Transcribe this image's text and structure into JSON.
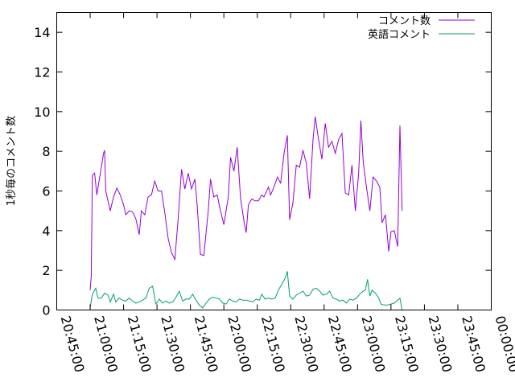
{
  "chart_data": {
    "type": "line",
    "ylabel": "1秒毎のコメント数",
    "xlabel": "",
    "ylim": [
      0,
      15
    ],
    "yticks": [
      0,
      2,
      4,
      6,
      8,
      10,
      12,
      14
    ],
    "xlim": [
      "20:45:00",
      "00:00:00"
    ],
    "xticks": [
      "20:45:00",
      "21:00:00",
      "21:15:00",
      "21:30:00",
      "21:45:00",
      "22:00:00",
      "22:15:00",
      "22:30:00",
      "22:45:00",
      "23:00:00",
      "23:15:00",
      "23:30:00",
      "23:45:00",
      "00:00:00"
    ],
    "grid": false,
    "legend": "top-right",
    "series": [
      {
        "name": "コメント数",
        "color": "#9400d3",
        "points": [
          [
            "21:00:00",
            1.0
          ],
          [
            "21:00:30",
            1.7
          ],
          [
            "21:01:00",
            6.8
          ],
          [
            "21:02:00",
            6.9
          ],
          [
            "21:03:00",
            5.8
          ],
          [
            "21:04:00",
            6.5
          ],
          [
            "21:06:00",
            7.9
          ],
          [
            "21:06:30",
            8.05
          ],
          [
            "21:07:00",
            6.0
          ],
          [
            "21:08:00",
            5.5
          ],
          [
            "21:09:00",
            5.0
          ],
          [
            "21:10:30",
            5.7
          ],
          [
            "21:12:00",
            6.15
          ],
          [
            "21:13:30",
            5.8
          ],
          [
            "21:15:00",
            5.3
          ],
          [
            "21:16:00",
            4.8
          ],
          [
            "21:17:30",
            5.0
          ],
          [
            "21:19:00",
            4.95
          ],
          [
            "21:20:30",
            4.6
          ],
          [
            "21:22:00",
            3.8
          ],
          [
            "21:23:00",
            5.0
          ],
          [
            "21:24:30",
            4.8
          ],
          [
            "21:26:00",
            5.7
          ],
          [
            "21:27:30",
            5.8
          ],
          [
            "21:29:00",
            6.5
          ],
          [
            "21:30:30",
            6.0
          ],
          [
            "21:32:00",
            6.0
          ],
          [
            "21:33:30",
            4.9
          ],
          [
            "21:35:00",
            3.6
          ],
          [
            "21:36:30",
            2.9
          ],
          [
            "21:38:00",
            2.55
          ],
          [
            "21:39:30",
            4.6
          ],
          [
            "21:41:00",
            7.1
          ],
          [
            "21:42:30",
            6.1
          ],
          [
            "21:44:00",
            6.9
          ],
          [
            "21:45:30",
            6.1
          ],
          [
            "21:47:00",
            6.6
          ],
          [
            "21:48:00",
            5.3
          ],
          [
            "21:49:30",
            2.8
          ],
          [
            "21:51:00",
            2.75
          ],
          [
            "21:53:00",
            5.0
          ],
          [
            "21:54:00",
            6.6
          ],
          [
            "21:55:30",
            5.7
          ],
          [
            "21:57:00",
            5.8
          ],
          [
            "21:58:30",
            5.0
          ],
          [
            "22:00:00",
            4.3
          ],
          [
            "22:02:00",
            5.7
          ],
          [
            "22:03:00",
            7.7
          ],
          [
            "22:04:30",
            7.0
          ],
          [
            "22:06:00",
            8.2
          ],
          [
            "22:07:30",
            5.6
          ],
          [
            "22:09:00",
            4.5
          ],
          [
            "22:10:00",
            3.9
          ],
          [
            "22:11:00",
            5.3
          ],
          [
            "22:12:30",
            5.6
          ],
          [
            "22:14:00",
            5.5
          ],
          [
            "22:15:30",
            5.5
          ],
          [
            "22:17:00",
            5.8
          ],
          [
            "22:18:00",
            5.7
          ],
          [
            "22:20:00",
            6.2
          ],
          [
            "22:21:00",
            5.8
          ],
          [
            "22:22:30",
            6.2
          ],
          [
            "22:24:00",
            6.7
          ],
          [
            "22:25:30",
            6.4
          ],
          [
            "22:27:00",
            7.9
          ],
          [
            "22:28:30",
            8.8
          ],
          [
            "22:29:30",
            4.55
          ],
          [
            "22:31:00",
            5.4
          ],
          [
            "22:32:30",
            7.3
          ],
          [
            "22:34:00",
            7.2
          ],
          [
            "22:35:30",
            8.05
          ],
          [
            "22:37:00",
            7.4
          ],
          [
            "22:38:30",
            5.6
          ],
          [
            "22:40:00",
            8.6
          ],
          [
            "22:41:00",
            9.75
          ],
          [
            "22:42:30",
            8.6
          ],
          [
            "22:44:00",
            7.6
          ],
          [
            "22:45:30",
            9.4
          ],
          [
            "22:47:00",
            8.2
          ],
          [
            "22:48:30",
            8.5
          ],
          [
            "22:50:00",
            7.9
          ],
          [
            "22:51:30",
            8.6
          ],
          [
            "22:53:00",
            8.9
          ],
          [
            "22:54:30",
            5.9
          ],
          [
            "22:56:00",
            5.8
          ],
          [
            "22:57:30",
            7.3
          ],
          [
            "22:59:00",
            5.0
          ],
          [
            "23:00:30",
            6.9
          ],
          [
            "23:01:30",
            9.55
          ],
          [
            "23:02:30",
            7.5
          ],
          [
            "23:04:00",
            6.2
          ],
          [
            "23:05:30",
            5.0
          ],
          [
            "23:07:00",
            6.7
          ],
          [
            "23:08:30",
            6.5
          ],
          [
            "23:10:00",
            6.2
          ],
          [
            "23:11:00",
            4.4
          ],
          [
            "23:12:30",
            4.8
          ],
          [
            "23:14:00",
            2.95
          ],
          [
            "23:15:00",
            3.95
          ],
          [
            "23:16:30",
            4.0
          ],
          [
            "23:18:00",
            3.2
          ],
          [
            "23:19:00",
            9.3
          ],
          [
            "23:20:00",
            5.0
          ]
        ]
      },
      {
        "name": "英語コメント",
        "color": "#009e73",
        "points": [
          [
            "21:00:00",
            0.1
          ],
          [
            "21:01:00",
            0.8
          ],
          [
            "21:02:30",
            1.1
          ],
          [
            "21:03:30",
            0.6
          ],
          [
            "21:05:00",
            0.6
          ],
          [
            "21:06:30",
            0.85
          ],
          [
            "21:08:00",
            0.75
          ],
          [
            "21:09:00",
            0.4
          ],
          [
            "21:10:30",
            0.8
          ],
          [
            "21:11:30",
            0.4
          ],
          [
            "21:13:00",
            0.6
          ],
          [
            "21:14:30",
            0.5
          ],
          [
            "21:16:00",
            0.45
          ],
          [
            "21:17:30",
            0.6
          ],
          [
            "21:19:00",
            0.45
          ],
          [
            "21:20:30",
            0.35
          ],
          [
            "21:22:00",
            0.4
          ],
          [
            "21:23:30",
            0.5
          ],
          [
            "21:25:00",
            0.6
          ],
          [
            "21:26:30",
            1.1
          ],
          [
            "21:28:00",
            1.2
          ],
          [
            "21:29:30",
            0.3
          ],
          [
            "21:31:00",
            0.55
          ],
          [
            "21:32:30",
            0.35
          ],
          [
            "21:34:00",
            0.45
          ],
          [
            "21:35:30",
            0.35
          ],
          [
            "21:37:00",
            0.4
          ],
          [
            "21:38:30",
            0.65
          ],
          [
            "21:40:00",
            0.95
          ],
          [
            "21:41:30",
            0.45
          ],
          [
            "21:43:00",
            0.55
          ],
          [
            "21:44:30",
            0.55
          ],
          [
            "21:46:00",
            0.8
          ],
          [
            "21:47:30",
            0.5
          ],
          [
            "21:49:00",
            0.25
          ],
          [
            "21:50:30",
            0.1
          ],
          [
            "21:52:00",
            0.35
          ],
          [
            "21:53:30",
            0.55
          ],
          [
            "21:55:00",
            0.65
          ],
          [
            "21:56:30",
            0.6
          ],
          [
            "21:58:00",
            0.55
          ],
          [
            "21:59:30",
            0.35
          ],
          [
            "22:01:00",
            0.3
          ],
          [
            "22:02:30",
            0.55
          ],
          [
            "22:04:00",
            0.45
          ],
          [
            "22:05:30",
            0.4
          ],
          [
            "22:07:00",
            0.55
          ],
          [
            "22:08:30",
            0.5
          ],
          [
            "22:10:00",
            0.5
          ],
          [
            "22:11:30",
            0.45
          ],
          [
            "22:13:00",
            0.4
          ],
          [
            "22:14:30",
            0.55
          ],
          [
            "22:16:00",
            0.5
          ],
          [
            "22:17:00",
            0.8
          ],
          [
            "22:18:30",
            0.55
          ],
          [
            "22:20:00",
            0.6
          ],
          [
            "22:21:30",
            0.55
          ],
          [
            "22:23:00",
            0.6
          ],
          [
            "22:24:30",
            1.0
          ],
          [
            "22:26:00",
            1.3
          ],
          [
            "22:27:30",
            1.6
          ],
          [
            "22:28:30",
            1.95
          ],
          [
            "22:29:30",
            0.7
          ],
          [
            "22:31:00",
            0.55
          ],
          [
            "22:32:30",
            0.75
          ],
          [
            "22:34:00",
            0.85
          ],
          [
            "22:35:30",
            0.95
          ],
          [
            "22:37:00",
            0.7
          ],
          [
            "22:38:30",
            0.75
          ],
          [
            "22:40:00",
            1.05
          ],
          [
            "22:41:30",
            1.1
          ],
          [
            "22:43:00",
            0.95
          ],
          [
            "22:44:30",
            0.75
          ],
          [
            "22:46:00",
            0.8
          ],
          [
            "22:47:30",
            0.95
          ],
          [
            "22:49:00",
            0.6
          ],
          [
            "22:50:30",
            0.55
          ],
          [
            "22:52:00",
            0.45
          ],
          [
            "22:53:30",
            0.5
          ],
          [
            "22:55:00",
            0.35
          ],
          [
            "22:56:30",
            0.55
          ],
          [
            "22:58:00",
            0.5
          ],
          [
            "22:59:30",
            0.6
          ],
          [
            "23:01:00",
            0.8
          ],
          [
            "23:02:30",
            0.95
          ],
          [
            "23:03:30",
            1.0
          ],
          [
            "23:04:30",
            1.55
          ],
          [
            "23:05:30",
            0.7
          ],
          [
            "23:06:30",
            1.0
          ],
          [
            "23:08:00",
            0.85
          ],
          [
            "23:09:30",
            0.6
          ],
          [
            "23:10:30",
            0.3
          ],
          [
            "23:12:00",
            0.25
          ],
          [
            "23:13:30",
            0.25
          ],
          [
            "23:15:00",
            0.3
          ],
          [
            "23:16:30",
            0.35
          ],
          [
            "23:18:00",
            0.5
          ],
          [
            "23:19:00",
            0.6
          ],
          [
            "23:20:00",
            0.0
          ]
        ]
      }
    ]
  }
}
